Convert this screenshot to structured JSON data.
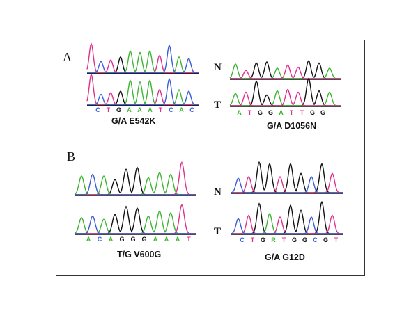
{
  "colors": {
    "A": "#3cb530",
    "C": "#3b5bd8",
    "G": "#111111",
    "T": "#e0308c",
    "R": "#3cb530"
  },
  "panels": {
    "a": "A",
    "b": "B"
  },
  "row_labels": {
    "normal": "N",
    "tumor": "T"
  },
  "mutations": {
    "e542k": {
      "label": "G/A  E542K",
      "sequence": [
        "C",
        "T",
        "G",
        "A",
        "A",
        "A",
        "T",
        "C",
        "A",
        "C"
      ]
    },
    "d1056n": {
      "label": "G/A   D1056N",
      "sequence": [
        "A",
        "T",
        "G",
        "G",
        "A",
        "T",
        "T",
        "G",
        "G"
      ]
    },
    "v600g": {
      "label": "T/G  V600G",
      "sequence": [
        "A",
        "C",
        "A",
        "G",
        "G",
        "G",
        "A",
        "A",
        "A",
        "T"
      ]
    },
    "g12d": {
      "label": "G/A  G12D",
      "sequence": [
        "C",
        "T",
        "G",
        "R",
        "T",
        "G",
        "G",
        "C",
        "G",
        "T"
      ]
    }
  }
}
